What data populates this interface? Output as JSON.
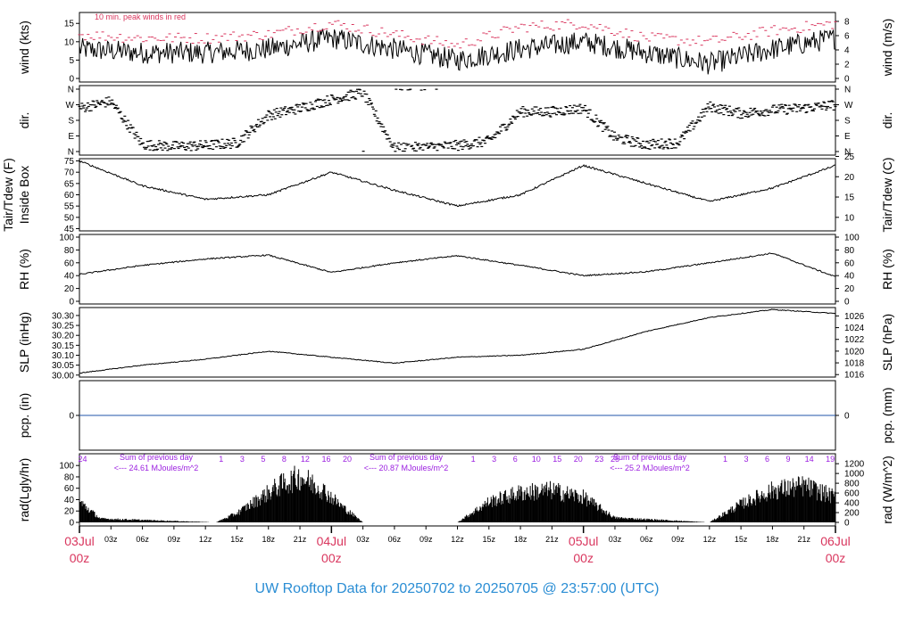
{
  "title": "UW Rooftop Data for 20250702  to  20250705 @ 23:57:00  (UTC)",
  "colors": {
    "peak": "#d9365e",
    "series": "#000000",
    "pcp": "#2255aa",
    "rad_text": "#9b1fe0",
    "title": "#2a8dd4"
  },
  "panels": {
    "wind": {
      "ylabel_left": "wind (kts)",
      "ylabel_right": "wind (m/s)",
      "note": "10 min. peak winds in red",
      "left_ticks": [
        "0",
        "5",
        "10",
        "15"
      ],
      "right_ticks": [
        "0",
        "2",
        "4",
        "6",
        "8"
      ]
    },
    "dir": {
      "ylabel_left": "dir.",
      "ylabel_right": "dir.",
      "left_ticks": [
        "N",
        "E",
        "S",
        "W",
        "N"
      ],
      "right_ticks": [
        "N",
        "E",
        "S",
        "W",
        "N"
      ]
    },
    "temp": {
      "ylabel_left": "Tair/Tdew (F)",
      "ylabel_left2": "Inside Box",
      "ylabel_right": "Tair/Tdew (C)",
      "left_ticks": [
        "45",
        "50",
        "55",
        "60",
        "65",
        "70",
        "75"
      ],
      "right_ticks": [
        "10",
        "15",
        "20",
        "25"
      ]
    },
    "rh": {
      "ylabel_left": "RH (%)",
      "ylabel_right": "RH (%)",
      "left_ticks": [
        "0",
        "20",
        "40",
        "60",
        "80",
        "100"
      ],
      "right_ticks": [
        "0",
        "20",
        "40",
        "60",
        "80",
        "100"
      ]
    },
    "slp": {
      "ylabel_left": "SLP (inHg)",
      "ylabel_right": "SLP (hPa)",
      "left_ticks": [
        "30.00",
        "30.05",
        "30.10",
        "30.15",
        "30.20",
        "30.25",
        "30.30"
      ],
      "right_ticks": [
        "1016",
        "1018",
        "1020",
        "1022",
        "1024",
        "1026"
      ]
    },
    "pcp": {
      "ylabel_left": "pcp. (in)",
      "ylabel_right": "pcp. (mm)",
      "left_ticks": [
        "0"
      ],
      "right_ticks": [
        "0"
      ]
    },
    "rad": {
      "ylabel_left": "rad(Lgly/hr)",
      "ylabel_right": "rad (W/m^2)",
      "left_ticks": [
        "0",
        "20",
        "40",
        "60",
        "80",
        "100"
      ],
      "right_ticks": [
        "0",
        "200",
        "400",
        "600",
        "800",
        "1000",
        "1200"
      ],
      "sums": [
        {
          "head": "Sum of previous day",
          "value": "<--- 24.61 MJoules/m^2"
        },
        {
          "head": "Sum of previous day",
          "value": "<--- 20.87 MJoules/m^2"
        },
        {
          "head": "Sum of previous day",
          "value": "<--- 25.2 MJoules/m^2"
        }
      ],
      "hour_labels": [
        {
          "t": 0.3,
          "label": "24"
        },
        {
          "t": 13.5,
          "label": "1"
        },
        {
          "t": 15.5,
          "label": "3"
        },
        {
          "t": 17.5,
          "label": "5"
        },
        {
          "t": 19.5,
          "label": "8"
        },
        {
          "t": 21.5,
          "label": "12"
        },
        {
          "t": 23.5,
          "label": "16"
        },
        {
          "t": 25.5,
          "label": "20"
        },
        {
          "t": 37.5,
          "label": "1"
        },
        {
          "t": 39.5,
          "label": "3"
        },
        {
          "t": 41.5,
          "label": "6"
        },
        {
          "t": 43.5,
          "label": "10"
        },
        {
          "t": 45.5,
          "label": "15"
        },
        {
          "t": 47.5,
          "label": "20"
        },
        {
          "t": 49.5,
          "label": "23"
        },
        {
          "t": 51,
          "label": "25"
        },
        {
          "t": 61.5,
          "label": "1"
        },
        {
          "t": 63.5,
          "label": "3"
        },
        {
          "t": 65.5,
          "label": "6"
        },
        {
          "t": 67.5,
          "label": "9"
        },
        {
          "t": 69.5,
          "label": "14"
        },
        {
          "t": 71.5,
          "label": "19"
        }
      ]
    }
  },
  "x_axis": {
    "hour_ticks": [
      "03z",
      "06z",
      "09z",
      "12z",
      "15z",
      "18z",
      "21z",
      "03z",
      "06z",
      "09z",
      "12z",
      "15z",
      "18z",
      "21z",
      "03z",
      "06z",
      "09z",
      "12z",
      "15z",
      "18z",
      "21z"
    ],
    "hour_tick_times": [
      3,
      6,
      9,
      12,
      15,
      18,
      21,
      27,
      30,
      33,
      36,
      39,
      42,
      45,
      51,
      54,
      57,
      60,
      63,
      66,
      69
    ],
    "day_labels": [
      {
        "date": "03Jul",
        "hour": "00z",
        "t": 0
      },
      {
        "date": "04Jul",
        "hour": "00z",
        "t": 24
      },
      {
        "date": "05Jul",
        "hour": "00z",
        "t": 48
      },
      {
        "date": "06Jul",
        "hour": "00z",
        "t": 72
      }
    ]
  },
  "chart_data": [
    {
      "type": "line",
      "title": "",
      "ylabel": "wind (kts)",
      "ylim": [
        0,
        17
      ],
      "x_units": "hours since 03Jul 00z",
      "series": [
        {
          "name": "10 min. peak winds in red",
          "x": [
            0,
            6,
            12,
            18,
            24,
            30,
            36,
            42,
            48,
            54,
            60,
            66,
            72
          ],
          "values": [
            12,
            11,
            11,
            12,
            15,
            12,
            9,
            14,
            15,
            11,
            10,
            13,
            15
          ]
        },
        {
          "x": [
            0,
            6,
            12,
            18,
            24,
            30,
            36,
            42,
            48,
            54,
            60,
            66,
            72
          ],
          "values": [
            8,
            7,
            7,
            8,
            11,
            8,
            5,
            8,
            10,
            7,
            4,
            8,
            11
          ]
        }
      ]
    },
    {
      "type": "scatter",
      "ylabel": "dir.",
      "x_units": "hours since 03Jul 00z",
      "series": [
        {
          "x": [
            0,
            3,
            6,
            9,
            12,
            15,
            18,
            21,
            24,
            27,
            30,
            33,
            36,
            39,
            42,
            45,
            48,
            51,
            54,
            57,
            60,
            63,
            66,
            69,
            72
          ],
          "values": [
            250,
            290,
            40,
            30,
            35,
            50,
            210,
            250,
            300,
            340,
            20,
            25,
            35,
            60,
            230,
            230,
            250,
            80,
            40,
            50,
            260,
            220,
            240,
            250,
            270
          ]
        }
      ]
    },
    {
      "type": "line",
      "ylabel": "Tair/Tdew (F)",
      "ylim": [
        44,
        76
      ],
      "series": [
        {
          "x": [
            0,
            6,
            12,
            18,
            24,
            30,
            36,
            42,
            48,
            54,
            60,
            66,
            72
          ],
          "values": [
            75,
            64,
            58,
            60,
            70,
            62,
            55,
            60,
            73,
            65,
            57,
            63,
            73
          ]
        }
      ]
    },
    {
      "type": "line",
      "ylabel": "RH (%)",
      "ylim": [
        0,
        100
      ],
      "series": [
        {
          "x": [
            0,
            6,
            12,
            18,
            24,
            30,
            36,
            42,
            48,
            54,
            60,
            66,
            72
          ],
          "values": [
            42,
            56,
            66,
            72,
            45,
            60,
            71,
            56,
            40,
            46,
            60,
            75,
            38
          ]
        }
      ]
    },
    {
      "type": "line",
      "ylabel": "SLP (inHg)",
      "ylim": [
        29.99,
        30.34
      ],
      "series": [
        {
          "x": [
            0,
            6,
            12,
            18,
            24,
            30,
            36,
            42,
            48,
            54,
            60,
            66,
            72
          ],
          "values": [
            30.01,
            30.05,
            30.08,
            30.12,
            30.09,
            30.06,
            30.09,
            30.1,
            30.13,
            30.22,
            30.29,
            30.33,
            30.31
          ]
        }
      ]
    },
    {
      "type": "line",
      "ylabel": "pcp. (in)",
      "ylim": [
        -1,
        1
      ],
      "series": [
        {
          "x": [
            0,
            72
          ],
          "values": [
            0,
            0
          ]
        }
      ]
    },
    {
      "type": "bar",
      "ylabel": "rad(Lgly/hr)",
      "ylim": [
        0,
        105
      ],
      "series": [
        {
          "x": [
            0,
            2,
            13,
            15,
            17,
            19,
            21,
            23,
            25,
            27,
            36,
            39,
            42,
            45,
            48,
            51,
            60,
            63,
            66,
            69,
            72
          ],
          "values": [
            45,
            8,
            0,
            20,
            50,
            80,
            100,
            75,
            35,
            0,
            0,
            45,
            65,
            70,
            55,
            10,
            0,
            40,
            70,
            80,
            55
          ]
        }
      ]
    }
  ]
}
